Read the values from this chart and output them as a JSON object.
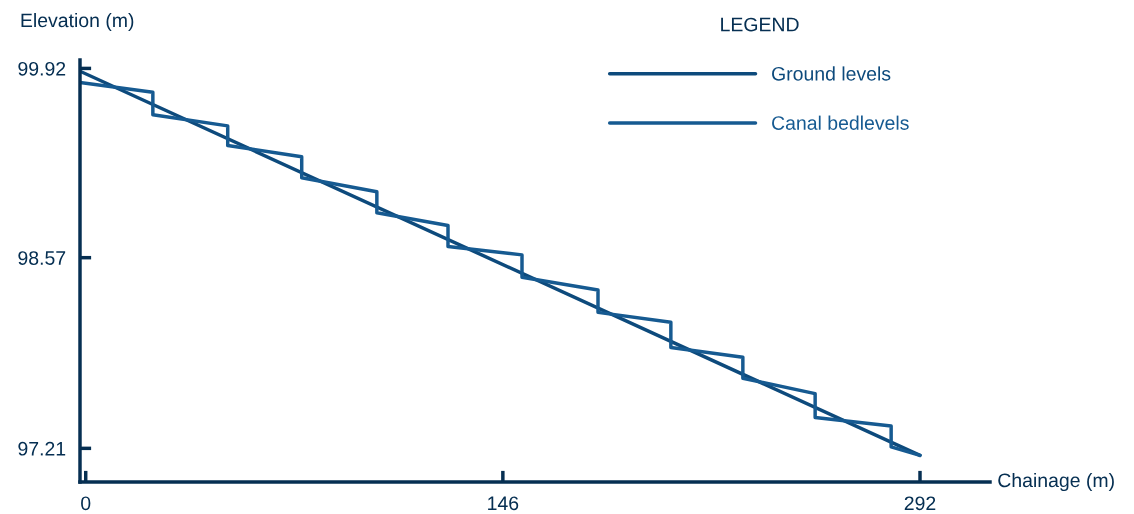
{
  "chart_data": {
    "type": "line",
    "xlabel": "Chainage (m)",
    "ylabel": "Elevation (m)",
    "legend_title": "LEGEND",
    "legend": "top right",
    "xlim": [
      -2,
      316.5
    ],
    "ylim": [
      96.97,
      99.98
    ],
    "xticks": [
      0,
      146,
      292
    ],
    "yticks": [
      97.21,
      98.57,
      99.92
    ],
    "series": [
      {
        "name": "Ground levels",
        "color": "#0d4a7c",
        "x": [
          -2,
          292
        ],
        "values": [
          99.9,
          97.16
        ]
      },
      {
        "name": "Canal bedlevels",
        "color": "#165a91",
        "x": [
          -2,
          23.5,
          23.5,
          49.7,
          49.7,
          75.6,
          75.6,
          101.9,
          101.9,
          126.8,
          126.8,
          152.7,
          152.7,
          179.3,
          179.3,
          204.8,
          204.8,
          230.0,
          230.0,
          255.3,
          255.3,
          281.9,
          281.9,
          292
        ],
        "values": [
          99.82,
          99.75,
          99.59,
          99.51,
          99.37,
          99.29,
          99.14,
          99.04,
          98.89,
          98.8,
          98.65,
          98.59,
          98.43,
          98.34,
          98.18,
          98.11,
          97.93,
          97.86,
          97.71,
          97.6,
          97.43,
          97.37,
          97.22,
          97.16
        ]
      }
    ]
  }
}
